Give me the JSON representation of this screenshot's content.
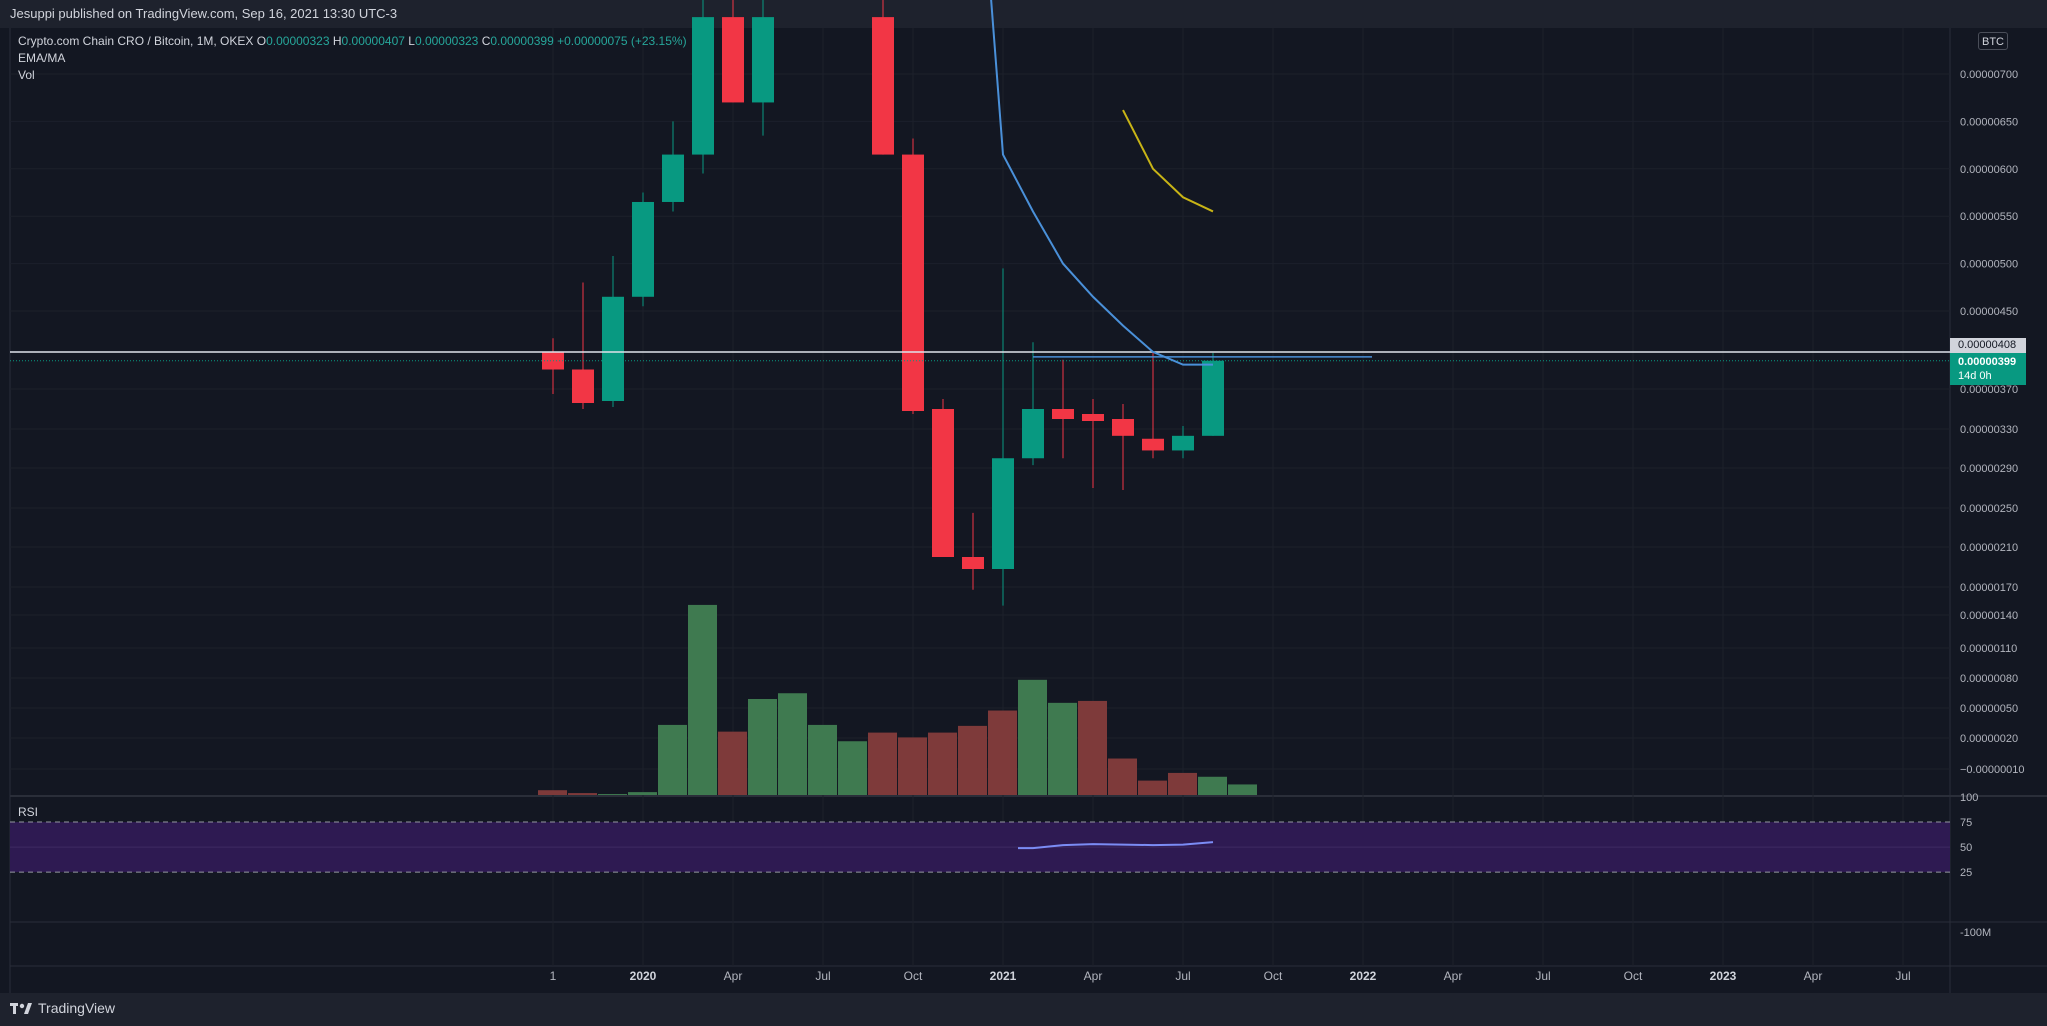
{
  "header": {
    "published": "Jesuppi published on TradingView.com, Sep 16, 2021 13:30 UTC-3"
  },
  "legend": {
    "symbol": "Crypto.com Chain CRO / Bitcoin, 1M, OKEX",
    "o_label": "O",
    "o_val": "0.00000323",
    "h_label": "H",
    "h_val": "0.00000407",
    "l_label": "L",
    "l_val": "0.00000323",
    "c_label": "C",
    "c_val": "0.00000399",
    "change": "+0.00000075 (+23.15%)",
    "ema_ma": "EMA/MA",
    "vol": "Vol"
  },
  "currency_badge": "BTC",
  "level_label": "0.00000408",
  "last_price": {
    "price": "0.00000399",
    "countdown": "14d 0h"
  },
  "rsi_label": "RSI",
  "footer": {
    "brand": "TradingView"
  },
  "colors": {
    "background": "#131722",
    "up": "#089981",
    "down": "#f23645",
    "vol_up": "#3f7a50",
    "vol_down": "#7e3a3a",
    "ema": "#4a90d9",
    "ma": "#c8b416",
    "rsi_band": "#2e1a52",
    "rsi_line": "#7b8cf5"
  },
  "chart_data": {
    "type": "candlestick",
    "price_axis_labels": [
      "0.00000700",
      "0.00000650",
      "0.00000600",
      "0.00000550",
      "0.00000500",
      "0.00000450",
      "0.00000370",
      "0.00000330",
      "0.00000290",
      "0.00000250",
      "0.00000210",
      "0.00000170",
      "0.00000140",
      "0.00000110",
      "0.00000080",
      "0.00000050",
      "0.00000020",
      "−0.00000010"
    ],
    "price_axis_values": [
      7e-06,
      6.5e-06,
      6e-06,
      5.5e-06,
      5e-06,
      4.5e-06,
      3.7e-06,
      3.3e-06,
      2.9e-06,
      2.5e-06,
      2.1e-06,
      1.7e-06,
      1.4e-06,
      1.1e-06,
      8e-07,
      5e-07,
      2e-07,
      -1e-07
    ],
    "time_labels": [
      "1",
      "2020",
      "Apr",
      "Jul",
      "Oct",
      "2021",
      "Apr",
      "Jul",
      "Oct",
      "2022",
      "Apr",
      "Jul",
      "Oct",
      "2023",
      "Apr",
      "Jul"
    ],
    "time_label_months": [
      0,
      3,
      6,
      9,
      12,
      15,
      18,
      21,
      24,
      27,
      30,
      33,
      36,
      39,
      42,
      45
    ],
    "year_labels": [
      "2020",
      "2021",
      "2022",
      "2023"
    ],
    "horizontal_level": 4.08e-06,
    "candles": [
      {
        "m": 0,
        "o": 4.08e-06,
        "h": 4.22e-06,
        "l": 3.65e-06,
        "c": 3.9e-06
      },
      {
        "m": 1,
        "o": 3.9e-06,
        "h": 4.8e-06,
        "l": 3.5e-06,
        "c": 3.56e-06
      },
      {
        "m": 2,
        "o": 3.58e-06,
        "h": 5.08e-06,
        "l": 3.52e-06,
        "c": 4.65e-06
      },
      {
        "m": 3,
        "o": 4.65e-06,
        "h": 5.75e-06,
        "l": 4.55e-06,
        "c": 5.65e-06
      },
      {
        "m": 4,
        "o": 5.65e-06,
        "h": 6.5e-06,
        "l": 5.55e-06,
        "c": 6.15e-06
      },
      {
        "m": 5,
        "o": 6.15e-06,
        "h": 7.8e-06,
        "l": 5.95e-06,
        "c": 7.6e-06
      },
      {
        "m": 6,
        "o": 7.6e-06,
        "h": 7.9e-06,
        "l": 6.7e-06,
        "c": 6.7e-06
      },
      {
        "m": 7,
        "o": 6.7e-06,
        "h": 7.8e-06,
        "l": 6.35e-06,
        "c": 7.6e-06
      },
      {
        "m": 11,
        "o": 7.6e-06,
        "h": 7.9e-06,
        "l": 6.15e-06,
        "c": 6.15e-06
      },
      {
        "m": 12,
        "o": 6.15e-06,
        "h": 6.32e-06,
        "l": 3.45e-06,
        "c": 3.48e-06
      },
      {
        "m": 13,
        "o": 3.5e-06,
        "h": 3.6e-06,
        "l": 2e-06,
        "c": 2e-06
      },
      {
        "m": 14,
        "o": 2e-06,
        "h": 2.45e-06,
        "l": 1.67e-06,
        "c": 1.88e-06
      },
      {
        "m": 15,
        "o": 1.88e-06,
        "h": 4.95e-06,
        "l": 1.5e-06,
        "c": 3e-06
      },
      {
        "m": 16,
        "o": 3e-06,
        "h": 4.18e-06,
        "l": 2.93e-06,
        "c": 3.5e-06
      },
      {
        "m": 17,
        "o": 3.5e-06,
        "h": 4e-06,
        "l": 3e-06,
        "c": 3.4e-06
      },
      {
        "m": 18,
        "o": 3.45e-06,
        "h": 3.6e-06,
        "l": 2.7e-06,
        "c": 3.38e-06
      },
      {
        "m": 19,
        "o": 3.4e-06,
        "h": 3.55e-06,
        "l": 2.68e-06,
        "c": 3.23e-06
      },
      {
        "m": 20,
        "o": 3.2e-06,
        "h": 4.08e-06,
        "l": 3e-06,
        "c": 3.08e-06
      },
      {
        "m": 21,
        "o": 3.08e-06,
        "h": 3.33e-06,
        "l": 3e-06,
        "c": 3.23e-06
      },
      {
        "m": 22,
        "o": 3.23e-06,
        "h": 4.07e-06,
        "l": 3.23e-06,
        "c": 3.99e-06
      }
    ],
    "volume": [
      {
        "m": 0,
        "v": 0.05,
        "up": false
      },
      {
        "m": 1,
        "v": 0.02,
        "up": false
      },
      {
        "m": 2,
        "v": 0.01,
        "up": true
      },
      {
        "m": 3,
        "v": 0.03,
        "up": true
      },
      {
        "m": 4,
        "v": 0.73,
        "up": true
      },
      {
        "m": 5,
        "v": 1.98,
        "up": true
      },
      {
        "m": 6,
        "v": 0.66,
        "up": false
      },
      {
        "m": 7,
        "v": 1.0,
        "up": true
      },
      {
        "m": 8,
        "v": 1.06,
        "up": true
      },
      {
        "m": 9,
        "v": 0.73,
        "up": true
      },
      {
        "m": 10,
        "v": 0.56,
        "up": true
      },
      {
        "m": 11,
        "v": 0.65,
        "up": false
      },
      {
        "m": 12,
        "v": 0.6,
        "up": false
      },
      {
        "m": 13,
        "v": 0.65,
        "up": false
      },
      {
        "m": 14,
        "v": 0.72,
        "up": false
      },
      {
        "m": 15,
        "v": 0.88,
        "up": false
      },
      {
        "m": 16,
        "v": 1.2,
        "up": true
      },
      {
        "m": 17,
        "v": 0.96,
        "up": true
      },
      {
        "m": 18,
        "v": 0.98,
        "up": false
      },
      {
        "m": 19,
        "v": 0.38,
        "up": false
      },
      {
        "m": 20,
        "v": 0.15,
        "up": false
      },
      {
        "m": 21,
        "v": 0.23,
        "up": false
      },
      {
        "m": 22,
        "v": 0.19,
        "up": true
      },
      {
        "m": 23,
        "v": 0.11,
        "up": true
      }
    ],
    "ema_line": [
      {
        "m": 14.6,
        "v": 7.8e-06
      },
      {
        "m": 15,
        "v": 6.15e-06
      },
      {
        "m": 16,
        "v": 5.55e-06
      },
      {
        "m": 17,
        "v": 5e-06
      },
      {
        "m": 18,
        "v": 4.65e-06
      },
      {
        "m": 19,
        "v": 4.35e-06
      },
      {
        "m": 20,
        "v": 4.08e-06
      },
      {
        "m": 21,
        "v": 3.95e-06
      },
      {
        "m": 22,
        "v": 3.95e-06
      }
    ],
    "ma_line": [
      {
        "m": 19,
        "v": 6.62e-06
      },
      {
        "m": 20,
        "v": 6e-06
      },
      {
        "m": 21,
        "v": 5.7e-06
      },
      {
        "m": 22,
        "v": 5.55e-06
      }
    ],
    "rsi": {
      "axis_labels": [
        "100",
        "75",
        "50",
        "25"
      ],
      "axis_values": [
        100,
        75,
        50,
        25
      ],
      "band": [
        25,
        75
      ],
      "values": [
        {
          "m": 15.5,
          "v": 49
        },
        {
          "m": 16,
          "v": 49
        },
        {
          "m": 17,
          "v": 52
        },
        {
          "m": 18,
          "v": 53
        },
        {
          "m": 19,
          "v": 52.5
        },
        {
          "m": 20,
          "v": 52
        },
        {
          "m": 21,
          "v": 52.5
        },
        {
          "m": 22,
          "v": 55
        }
      ]
    },
    "lower_axis_label": "-100M"
  }
}
